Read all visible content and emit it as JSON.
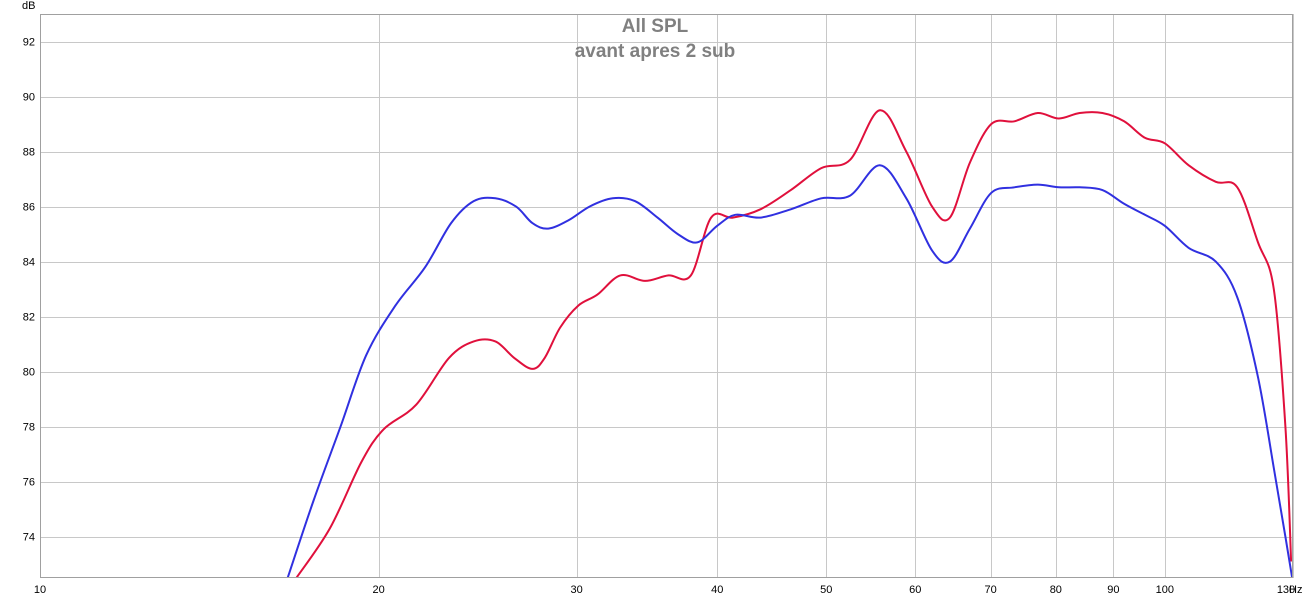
{
  "chart_data": {
    "type": "line",
    "title": "All SPL",
    "subtitle": "avant apres 2 sub",
    "x_scale": "log",
    "xlim": [
      10,
      130
    ],
    "ylim": [
      72.5,
      93
    ],
    "x_unit": "Hz",
    "y_unit": "dB",
    "x_ticks": [
      10,
      20,
      30,
      40,
      50,
      60,
      70,
      80,
      90,
      100,
      130
    ],
    "x_tick_labels": [
      "10",
      "20",
      "30",
      "40",
      "50",
      "60",
      "70",
      "80",
      "90",
      "100",
      "130"
    ],
    "y_ticks": [
      74,
      76,
      78,
      80,
      82,
      84,
      86,
      88,
      90,
      92
    ],
    "y_tick_labels": [
      "74",
      "76",
      "78",
      "80",
      "82",
      "84",
      "86",
      "88",
      "90",
      "92"
    ],
    "grid": true,
    "colors": {
      "grid": "#c8c8c8",
      "plot_border": "#a0a0a0",
      "title": "#808080"
    },
    "series": [
      {
        "color": "#e0103c",
        "x": [
          16.9,
          18.1,
          19.3,
          20.2,
          21.6,
          23.1,
          24.3,
          25.4,
          26.4,
          27.4,
          28.1,
          29.0,
          30.1,
          31.3,
          32.8,
          34.5,
          36.2,
          37.9,
          39.5,
          41.3,
          43.7,
          46.5,
          49.5,
          52.5,
          55.8,
          58.9,
          62.1,
          64.4,
          67.1,
          70.1,
          73.5,
          77.1,
          80.5,
          84.0,
          88.0,
          92.0,
          96.0,
          100.0,
          105.0,
          111.0,
          116.0,
          121.0,
          125.0,
          128.0,
          129.5
        ],
        "y": [
          72.5,
          74.3,
          76.7,
          77.9,
          78.8,
          80.5,
          81.1,
          81.1,
          80.5,
          80.1,
          80.5,
          81.6,
          82.4,
          82.8,
          83.5,
          83.3,
          83.5,
          83.5,
          85.6,
          85.6,
          85.9,
          86.6,
          87.4,
          87.7,
          89.5,
          88.0,
          86.0,
          85.6,
          87.6,
          89.0,
          89.1,
          89.4,
          89.2,
          89.4,
          89.4,
          89.1,
          88.5,
          88.3,
          87.5,
          86.9,
          86.7,
          84.7,
          83.0,
          78.0,
          73.1
        ]
      },
      {
        "color": "#3030e0",
        "x": [
          16.6,
          17.5,
          18.5,
          19.5,
          20.7,
          22.0,
          23.2,
          24.3,
          25.4,
          26.5,
          27.4,
          28.3,
          29.5,
          30.8,
          32.3,
          33.8,
          35.4,
          36.9,
          38.4,
          40.0,
          41.5,
          43.7,
          46.5,
          49.5,
          52.5,
          55.8,
          58.9,
          62.1,
          64.4,
          67.1,
          70.1,
          73.5,
          77.1,
          80.5,
          84.0,
          88.0,
          92.0,
          96.0,
          100.0,
          105.0,
          111.0,
          116.0,
          121.0,
          125.0,
          128.0,
          129.8
        ],
        "y": [
          72.5,
          75.3,
          78.0,
          80.6,
          82.4,
          83.8,
          85.4,
          86.2,
          86.3,
          86.0,
          85.4,
          85.2,
          85.5,
          86.0,
          86.3,
          86.2,
          85.6,
          85.0,
          84.7,
          85.3,
          85.7,
          85.6,
          85.9,
          86.3,
          86.4,
          87.5,
          86.3,
          84.4,
          84.0,
          85.2,
          86.5,
          86.7,
          86.8,
          86.7,
          86.7,
          86.6,
          86.1,
          85.7,
          85.3,
          84.5,
          84.0,
          82.7,
          79.8,
          76.5,
          74.0,
          72.5
        ]
      }
    ]
  }
}
